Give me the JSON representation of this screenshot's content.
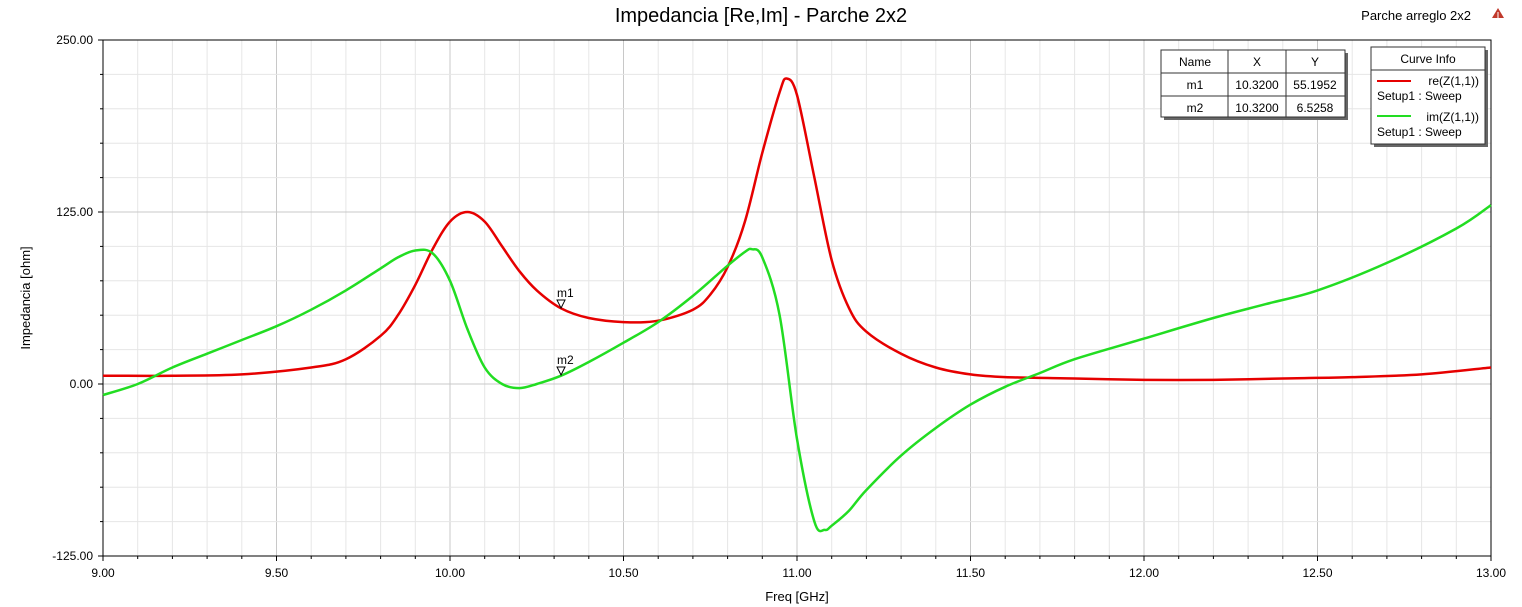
{
  "chart_data": {
    "type": "line",
    "title": "Impedancia [Re,Im] - Parche 2x2",
    "project_label": "Parche arreglo 2x2",
    "xlabel": "Freq [GHz]",
    "ylabel": "Impedancia [ohm]",
    "xlim": [
      9.0,
      13.0
    ],
    "ylim": [
      -125.0,
      250.0
    ],
    "xticks": [
      "9.00",
      "9.50",
      "10.00",
      "10.50",
      "11.00",
      "11.50",
      "12.00",
      "12.50",
      "13.00"
    ],
    "yticks": [
      "250.00",
      "125.00",
      "0.00",
      "-125.00"
    ],
    "grid": true,
    "series": [
      {
        "name": "re(Z(1,1))",
        "setup": "Setup1 : Sweep",
        "color": "#e60000",
        "x": [
          9.0,
          9.2,
          9.4,
          9.6,
          9.7,
          9.8,
          9.85,
          9.9,
          9.95,
          10.0,
          10.05,
          10.1,
          10.15,
          10.2,
          10.25,
          10.32,
          10.4,
          10.5,
          10.6,
          10.7,
          10.75,
          10.8,
          10.85,
          10.9,
          10.95,
          10.97,
          11.0,
          11.05,
          11.1,
          11.15,
          11.2,
          11.3,
          11.4,
          11.5,
          11.6,
          11.8,
          12.0,
          12.2,
          12.4,
          12.6,
          12.8,
          13.0
        ],
        "y": [
          6,
          6,
          7,
          12,
          18,
          35,
          50,
          72,
          98,
          118,
          125,
          118,
          100,
          82,
          68,
          55,
          48,
          45,
          46,
          54,
          65,
          85,
          118,
          168,
          212,
          222,
          210,
          150,
          90,
          55,
          38,
          22,
          12,
          7,
          5,
          4,
          3,
          3,
          4,
          5,
          7,
          12
        ]
      },
      {
        "name": "im(Z(1,1))",
        "setup": "Setup1 : Sweep",
        "color": "#22dd22",
        "x": [
          9.0,
          9.1,
          9.2,
          9.3,
          9.4,
          9.5,
          9.6,
          9.7,
          9.8,
          9.85,
          9.9,
          9.95,
          10.0,
          10.05,
          10.1,
          10.15,
          10.2,
          10.25,
          10.32,
          10.4,
          10.5,
          10.6,
          10.7,
          10.8,
          10.85,
          10.87,
          10.9,
          10.95,
          11.0,
          11.05,
          11.08,
          11.1,
          11.15,
          11.2,
          11.3,
          11.4,
          11.5,
          11.6,
          11.7,
          11.8,
          12.0,
          12.2,
          12.35,
          12.5,
          12.7,
          12.9,
          13.0
        ],
        "y": [
          -8,
          0,
          12,
          22,
          32,
          42,
          54,
          68,
          84,
          92,
          97,
          95,
          75,
          40,
          12,
          0,
          -3,
          0,
          6,
          16,
          30,
          45,
          64,
          86,
          96,
          98,
          92,
          50,
          -40,
          -100,
          -106,
          -103,
          -92,
          -77,
          -52,
          -32,
          -15,
          -2,
          8,
          18,
          33,
          48,
          58,
          68,
          88,
          113,
          130
        ]
      }
    ],
    "markers": {
      "headers": [
        "Name",
        "X",
        "Y"
      ],
      "rows": [
        {
          "name": "m1",
          "x": "10.3200",
          "y": "55.1952",
          "xv": 10.32,
          "yv": 55.1952
        },
        {
          "name": "m2",
          "x": "10.3200",
          "y": "6.5258",
          "xv": 10.32,
          "yv": 6.5258
        }
      ]
    },
    "curve_info_title": "Curve Info",
    "legend_position": "top-right"
  }
}
